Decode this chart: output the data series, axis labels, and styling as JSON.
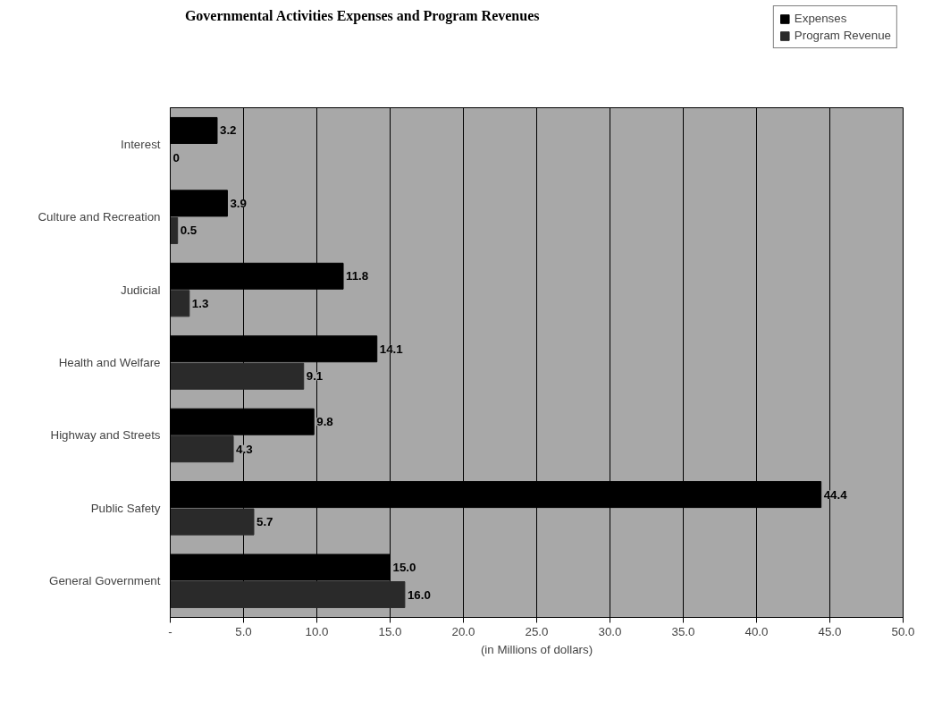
{
  "chart_data": {
    "type": "bar",
    "orientation": "horizontal",
    "title": "Governmental Activities Expenses and Program Revenues",
    "xlabel": "(in Millions of dollars)",
    "categories": [
      "Interest",
      "Culture and Recreation",
      "Judicial",
      "Health and Welfare",
      "Highway and Streets",
      "Public Safety",
      "General Government"
    ],
    "series": [
      {
        "name": "Expenses",
        "color": "#000000",
        "values": [
          3.2,
          3.9,
          11.8,
          14.1,
          9.8,
          44.4,
          15.0
        ],
        "value_labels": [
          "3.2",
          "3.9",
          "11.8",
          "14.1",
          "9.8",
          "44.4",
          "15.0"
        ]
      },
      {
        "name": "Program Revenue",
        "color": "#2a2a2a",
        "values": [
          0,
          0.5,
          1.3,
          9.1,
          4.3,
          5.7,
          16.0
        ],
        "value_labels": [
          "0",
          "0.5",
          "1.3",
          "9.1",
          "4.3",
          "5.7",
          "16.0"
        ]
      }
    ],
    "xlim": [
      0,
      50
    ],
    "xticks": [
      {
        "value": 0,
        "label": "-"
      },
      {
        "value": 5,
        "label": "5.0"
      },
      {
        "value": 10,
        "label": "10.0"
      },
      {
        "value": 15,
        "label": "15.0"
      },
      {
        "value": 20,
        "label": "20.0"
      },
      {
        "value": 25,
        "label": "25.0"
      },
      {
        "value": 30,
        "label": "30.0"
      },
      {
        "value": 35,
        "label": "35.0"
      },
      {
        "value": 40,
        "label": "40.0"
      },
      {
        "value": 45,
        "label": "45.0"
      },
      {
        "value": 50,
        "label": "50.0"
      }
    ],
    "grid": "x",
    "legend": "top right"
  }
}
